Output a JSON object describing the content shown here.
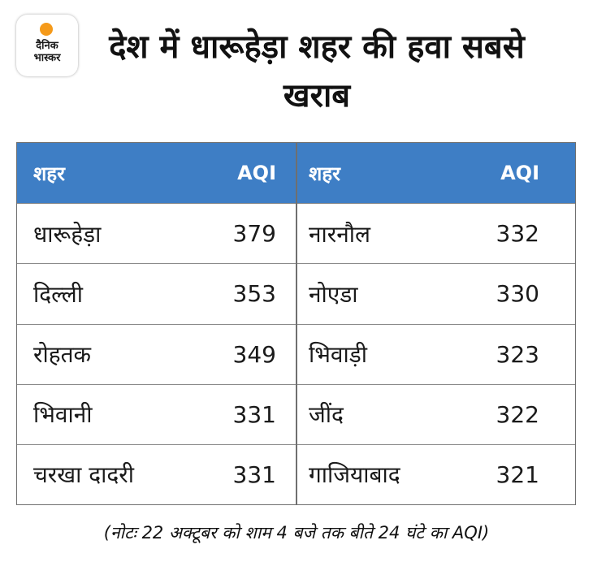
{
  "logo": {
    "text": "दैनिक\nभास्कर",
    "accent_color": "#f59a1a"
  },
  "headline": "देश में धारूहेड़ा शहर की हवा सबसे खराब",
  "table": {
    "header_bg": "#3e7ec5",
    "left": {
      "col_city": "शहर",
      "col_aqi": "AQI",
      "rows": [
        {
          "city": "धारूहेड़ा",
          "aqi": "379"
        },
        {
          "city": "दिल्ली",
          "aqi": "353"
        },
        {
          "city": "रोहतक",
          "aqi": "349"
        },
        {
          "city": "भिवानी",
          "aqi": "331"
        },
        {
          "city": "चरखा दादरी",
          "aqi": "331"
        }
      ]
    },
    "right": {
      "col_city": "शहर",
      "col_aqi": "AQI",
      "rows": [
        {
          "city": "नारनौल",
          "aqi": "332"
        },
        {
          "city": "नोएडा",
          "aqi": "330"
        },
        {
          "city": "भिवाड़ी",
          "aqi": "323"
        },
        {
          "city": "जींद",
          "aqi": "322"
        },
        {
          "city": "गाजियाबाद",
          "aqi": "321"
        }
      ]
    }
  },
  "note": "(नोटः 22 अक्टूबर को शाम 4 बजे तक बीते 24 घंटे का AQI)"
}
